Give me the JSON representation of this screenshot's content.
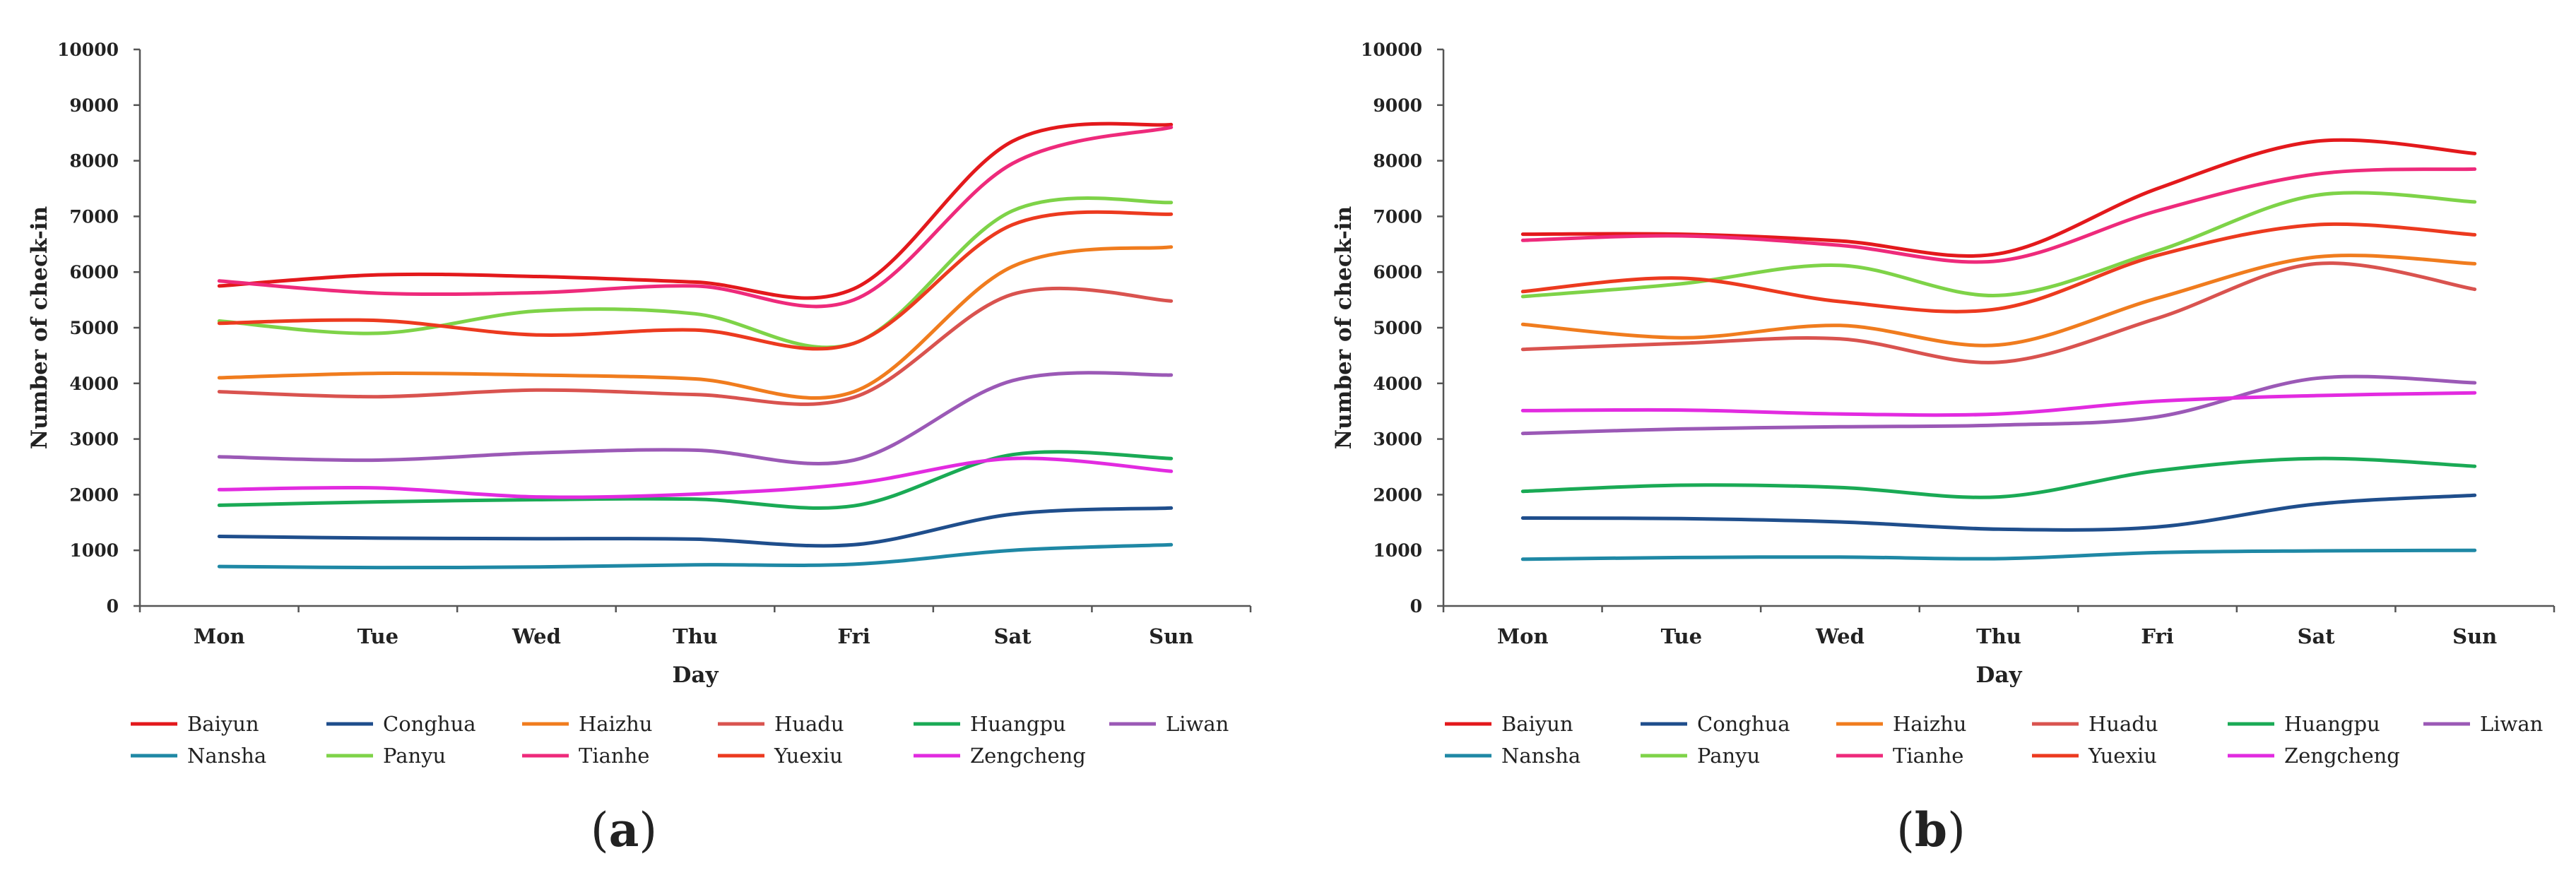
{
  "chart_data": [
    {
      "type": "line",
      "panel_label": {
        "open": "(",
        "letter": "a",
        "close": ")"
      },
      "xlabel": "Day",
      "ylabel": "Number of check-in",
      "ylim": [
        0,
        10000
      ],
      "yticks": [
        0,
        1000,
        2000,
        3000,
        4000,
        5000,
        6000,
        7000,
        8000,
        9000,
        10000
      ],
      "categories": [
        "Mon",
        "Tue",
        "Wed",
        "Thu",
        "Fri",
        "Sat",
        "Sun"
      ],
      "grid": false,
      "legend_position": "bottom",
      "series": [
        {
          "name": "Baiyun",
          "color": "#e3191c",
          "values": [
            5750,
            5950,
            5920,
            5820,
            5700,
            8350,
            8650
          ]
        },
        {
          "name": "Conghua",
          "color": "#1f4e8c",
          "values": [
            1250,
            1220,
            1210,
            1200,
            1100,
            1650,
            1760
          ]
        },
        {
          "name": "Haizhu",
          "color": "#f07c1e",
          "values": [
            4100,
            4180,
            4150,
            4080,
            3850,
            6100,
            6450
          ]
        },
        {
          "name": "Huadu",
          "color": "#d9534f",
          "values": [
            3850,
            3760,
            3880,
            3800,
            3750,
            5600,
            5480
          ]
        },
        {
          "name": "Huangpu",
          "color": "#1aaa55",
          "values": [
            1810,
            1870,
            1910,
            1920,
            1800,
            2720,
            2650
          ]
        },
        {
          "name": "Liwan",
          "color": "#9b59b6",
          "values": [
            2680,
            2620,
            2750,
            2800,
            2620,
            4050,
            4150
          ]
        },
        {
          "name": "Nansha",
          "color": "#1f88a5",
          "values": [
            710,
            690,
            700,
            740,
            750,
            1000,
            1100
          ]
        },
        {
          "name": "Panyu",
          "color": "#7ed348",
          "values": [
            5120,
            4900,
            5300,
            5250,
            4720,
            7100,
            7250
          ]
        },
        {
          "name": "Tianhe",
          "color": "#ee2a7b",
          "values": [
            5840,
            5620,
            5630,
            5750,
            5500,
            7950,
            8600
          ]
        },
        {
          "name": "Yuexiu",
          "color": "#ec3a1f",
          "values": [
            5080,
            5130,
            4870,
            4960,
            4720,
            6850,
            7040
          ]
        },
        {
          "name": "Zengcheng",
          "color": "#e22be0",
          "values": [
            2090,
            2120,
            1960,
            2010,
            2200,
            2650,
            2420
          ]
        }
      ]
    },
    {
      "type": "line",
      "panel_label": {
        "open": "(",
        "letter": "b",
        "close": ")"
      },
      "xlabel": "Day",
      "ylabel": "Number of check-in",
      "ylim": [
        0,
        10000
      ],
      "yticks": [
        0,
        1000,
        2000,
        3000,
        4000,
        5000,
        6000,
        7000,
        8000,
        9000,
        10000
      ],
      "categories": [
        "Mon",
        "Tue",
        "Wed",
        "Thu",
        "Fri",
        "Sat",
        "Sun"
      ],
      "grid": false,
      "legend_position": "bottom",
      "series": [
        {
          "name": "Baiyun",
          "color": "#e3191c",
          "values": [
            6680,
            6680,
            6560,
            6330,
            7500,
            8350,
            8130
          ]
        },
        {
          "name": "Conghua",
          "color": "#1f4e8c",
          "values": [
            1580,
            1570,
            1510,
            1380,
            1420,
            1830,
            1990
          ]
        },
        {
          "name": "Haizhu",
          "color": "#f07c1e",
          "values": [
            5060,
            4820,
            5040,
            4690,
            5530,
            6270,
            6150
          ]
        },
        {
          "name": "Huadu",
          "color": "#d9534f",
          "values": [
            4610,
            4720,
            4800,
            4380,
            5170,
            6150,
            5690
          ]
        },
        {
          "name": "Huangpu",
          "color": "#1aaa55",
          "values": [
            2060,
            2170,
            2130,
            1960,
            2430,
            2650,
            2510
          ]
        },
        {
          "name": "Liwan",
          "color": "#9b59b6",
          "values": [
            3100,
            3180,
            3220,
            3250,
            3400,
            4090,
            4010
          ]
        },
        {
          "name": "Nansha",
          "color": "#1f88a5",
          "values": [
            840,
            870,
            880,
            850,
            960,
            990,
            1000
          ]
        },
        {
          "name": "Panyu",
          "color": "#7ed348",
          "values": [
            5560,
            5790,
            6120,
            5580,
            6380,
            7380,
            7260
          ]
        },
        {
          "name": "Tianhe",
          "color": "#ee2a7b",
          "values": [
            6570,
            6650,
            6480,
            6200,
            7100,
            7760,
            7850
          ]
        },
        {
          "name": "Yuexiu",
          "color": "#ec3a1f",
          "values": [
            5650,
            5890,
            5470,
            5340,
            6300,
            6850,
            6670
          ]
        },
        {
          "name": "Zengcheng",
          "color": "#e22be0",
          "values": [
            3510,
            3520,
            3450,
            3450,
            3680,
            3780,
            3830
          ]
        }
      ]
    }
  ]
}
